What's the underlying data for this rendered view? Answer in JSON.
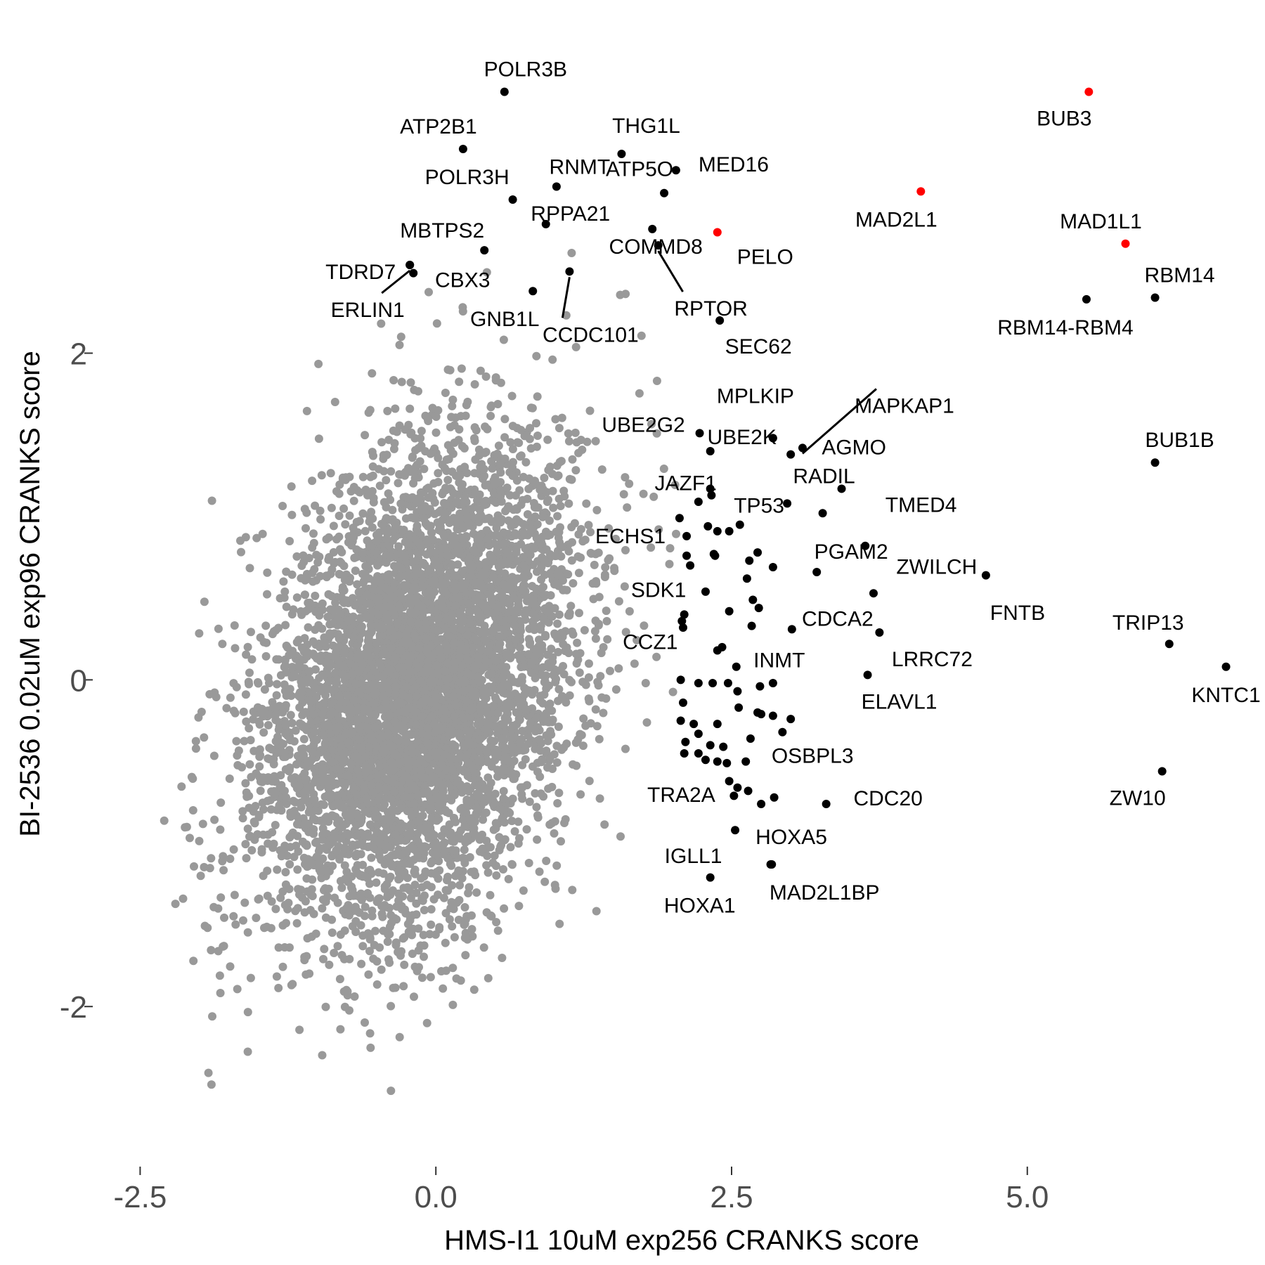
{
  "chart_data": {
    "type": "scatter",
    "xlabel": "HMS-I1 10uM exp256 CRANKS score",
    "ylabel": "BI-2536 0.02uM exp96 CRANKS score",
    "xlim": [
      -3.15,
      6.95
    ],
    "ylim": [
      -2.98,
      3.99
    ],
    "xticks": [
      -2.5,
      0.0,
      2.5,
      5.0
    ],
    "xtick_labels": [
      "-2.5",
      "0.0",
      "2.5",
      "5.0"
    ],
    "yticks": [
      -2,
      0,
      2
    ],
    "ytick_labels": [
      "-2",
      "0",
      "2"
    ],
    "grid": false,
    "legend": "none",
    "colors": {
      "background": "#999999",
      "highlight": "#000000",
      "top": "#ff0000"
    },
    "background_cloud": {
      "description_count": 6000,
      "x_center": -0.15,
      "x_sd": 0.62,
      "y_center": -0.05,
      "y_sd": 0.72,
      "correlation": 0.32
    },
    "labeled_points": [
      {
        "label": "POLR3B",
        "x": 0.58,
        "y": 3.6,
        "color": "black"
      },
      {
        "label": "ATP2B1",
        "x": 0.23,
        "y": 3.25,
        "color": "black"
      },
      {
        "label": "THG1L",
        "x": 1.57,
        "y": 3.22,
        "color": "black"
      },
      {
        "label": "RNMT",
        "x": 1.02,
        "y": 3.02,
        "color": "black"
      },
      {
        "label": "MED16",
        "x": 2.03,
        "y": 3.12,
        "color": "black"
      },
      {
        "label": "POLR3H",
        "x": 0.65,
        "y": 2.94,
        "color": "black"
      },
      {
        "label": "ATP5O",
        "x": 1.93,
        "y": 2.98,
        "color": "black"
      },
      {
        "label": "RPPA21",
        "x": 0.93,
        "y": 2.79,
        "color": "black"
      },
      {
        "label": "MBTPS2",
        "x": 0.41,
        "y": 2.63,
        "color": "black"
      },
      {
        "label": "COMMD8",
        "x": 1.83,
        "y": 2.76,
        "color": "black"
      },
      {
        "label": "PELO",
        "x": 2.38,
        "y": 2.74,
        "color": "red"
      },
      {
        "label": "MAD2L1",
        "x": 4.1,
        "y": 2.99,
        "color": "red"
      },
      {
        "label": "BUB3",
        "x": 5.52,
        "y": 3.6,
        "color": "red"
      },
      {
        "label": "MAD1L1",
        "x": 5.83,
        "y": 2.67,
        "color": "red"
      },
      {
        "label": "TDRD7",
        "x": -0.22,
        "y": 2.54,
        "color": "black"
      },
      {
        "label": "CBX3",
        "x": -0.19,
        "y": 2.49,
        "color": "black"
      },
      {
        "label": "RPTOR",
        "x": 1.88,
        "y": 2.66,
        "color": "black"
      },
      {
        "label": "CCDC101",
        "x": 1.13,
        "y": 2.5,
        "color": "black"
      },
      {
        "label": "ERLIN1",
        "x": -0.22,
        "y": 2.54,
        "color": "black"
      },
      {
        "label": "GNB1L",
        "x": 0.82,
        "y": 2.38,
        "color": "black"
      },
      {
        "label": "SEC62",
        "x": 2.4,
        "y": 2.2,
        "color": "black"
      },
      {
        "label": "RBM14",
        "x": 6.08,
        "y": 2.34,
        "color": "black"
      },
      {
        "label": "RBM14-RBM4",
        "x": 5.5,
        "y": 2.33,
        "color": "black"
      },
      {
        "label": "MPLKIP",
        "x": 2.85,
        "y": 1.48,
        "color": "black"
      },
      {
        "label": "MAPKAP1",
        "x": 3.1,
        "y": 1.42,
        "color": "black"
      },
      {
        "label": "UBE2G2",
        "x": 2.23,
        "y": 1.51,
        "color": "black"
      },
      {
        "label": "AGMO",
        "x": 3.0,
        "y": 1.38,
        "color": "black"
      },
      {
        "label": "BUB1B",
        "x": 6.08,
        "y": 1.33,
        "color": "black"
      },
      {
        "label": "UBE2K",
        "x": 2.32,
        "y": 1.4,
        "color": "black"
      },
      {
        "label": "RADIL",
        "x": 3.43,
        "y": 1.17,
        "color": "black"
      },
      {
        "label": "JAZF1",
        "x": 2.32,
        "y": 1.17,
        "color": "black"
      },
      {
        "label": "TP53",
        "x": 2.97,
        "y": 1.08,
        "color": "black"
      },
      {
        "label": "TMED4",
        "x": 3.27,
        "y": 1.02,
        "color": "black"
      },
      {
        "label": "ECHS1",
        "x": 2.12,
        "y": 0.88,
        "color": "black"
      },
      {
        "label": "PGAM2",
        "x": 3.63,
        "y": 0.82,
        "color": "black"
      },
      {
        "label": "ZWILCH",
        "x": 4.65,
        "y": 0.64,
        "color": "black"
      },
      {
        "label": "SDK1",
        "x": 2.15,
        "y": 0.7,
        "color": "black"
      },
      {
        "label": "FNTB",
        "x": 3.7,
        "y": 0.53,
        "color": "black"
      },
      {
        "label": "CDCA2",
        "x": 3.01,
        "y": 0.31,
        "color": "black"
      },
      {
        "label": "TRIP13",
        "x": 6.2,
        "y": 0.22,
        "color": "black"
      },
      {
        "label": "CCZ1",
        "x": 2.08,
        "y": 0.36,
        "color": "black"
      },
      {
        "label": "INMT",
        "x": 2.38,
        "y": 0.18,
        "color": "black"
      },
      {
        "label": "LRRC72",
        "x": 3.75,
        "y": 0.29,
        "color": "black"
      },
      {
        "label": "KNTC1",
        "x": 6.68,
        "y": 0.08,
        "color": "black"
      },
      {
        "label": "ELAVL1",
        "x": 3.65,
        "y": 0.03,
        "color": "black"
      },
      {
        "label": "OSBPL3",
        "x": 2.62,
        "y": -0.5,
        "color": "black"
      },
      {
        "label": "ZW10",
        "x": 6.14,
        "y": -0.56,
        "color": "black"
      },
      {
        "label": "CDC20",
        "x": 3.3,
        "y": -0.76,
        "color": "black"
      },
      {
        "label": "TRA2A",
        "x": 2.55,
        "y": -0.66,
        "color": "black"
      },
      {
        "label": "HOXA5",
        "x": 2.53,
        "y": -0.92,
        "color": "black"
      },
      {
        "label": "IGLL1",
        "x": 2.83,
        "y": -1.13,
        "color": "black"
      },
      {
        "label": "MAD2L1BP",
        "x": 2.84,
        "y": -1.13,
        "color": "black"
      },
      {
        "label": "HOXA1",
        "x": 2.32,
        "y": -1.21,
        "color": "black"
      }
    ],
    "unlabeled_points": [
      [
        2.33,
        1.13
      ],
      [
        2.22,
        1.09
      ],
      [
        2.57,
        0.95
      ],
      [
        2.06,
        0.99
      ],
      [
        2.3,
        0.94
      ],
      [
        2.38,
        0.91
      ],
      [
        2.48,
        0.91
      ],
      [
        2.12,
        0.76
      ],
      [
        2.36,
        0.76
      ],
      [
        2.72,
        0.78
      ],
      [
        2.65,
        0.73
      ],
      [
        2.85,
        0.69
      ],
      [
        2.28,
        0.54
      ],
      [
        2.68,
        0.49
      ],
      [
        2.73,
        0.44
      ],
      [
        2.1,
        0.4
      ],
      [
        2.48,
        0.42
      ],
      [
        2.67,
        0.33
      ],
      [
        2.09,
        0.32
      ],
      [
        2.42,
        0.2
      ],
      [
        2.54,
        0.08
      ],
      [
        2.07,
        0.0
      ],
      [
        2.22,
        -0.02
      ],
      [
        2.34,
        -0.02
      ],
      [
        2.47,
        -0.02
      ],
      [
        2.74,
        -0.04
      ],
      [
        2.85,
        -0.02
      ],
      [
        2.55,
        -0.07
      ],
      [
        2.09,
        -0.14
      ],
      [
        2.56,
        -0.17
      ],
      [
        2.75,
        -0.21
      ],
      [
        2.07,
        -0.25
      ],
      [
        2.18,
        -0.27
      ],
      [
        2.38,
        -0.27
      ],
      [
        2.72,
        -0.2
      ],
      [
        2.85,
        -0.22
      ],
      [
        3.0,
        -0.24
      ],
      [
        2.93,
        -0.32
      ],
      [
        2.22,
        -0.33
      ],
      [
        2.11,
        -0.38
      ],
      [
        2.32,
        -0.4
      ],
      [
        2.43,
        -0.41
      ],
      [
        2.66,
        -0.36
      ],
      [
        2.1,
        -0.45
      ],
      [
        2.22,
        -0.45
      ],
      [
        2.28,
        -0.49
      ],
      [
        2.38,
        -0.5
      ],
      [
        2.46,
        -0.51
      ],
      [
        2.48,
        -0.62
      ],
      [
        2.64,
        -0.68
      ],
      [
        2.52,
        -0.71
      ],
      [
        2.86,
        -0.72
      ],
      [
        2.75,
        -0.76
      ],
      [
        2.63,
        0.62
      ],
      [
        3.22,
        0.66
      ],
      [
        2.35,
        0.77
      ]
    ]
  }
}
